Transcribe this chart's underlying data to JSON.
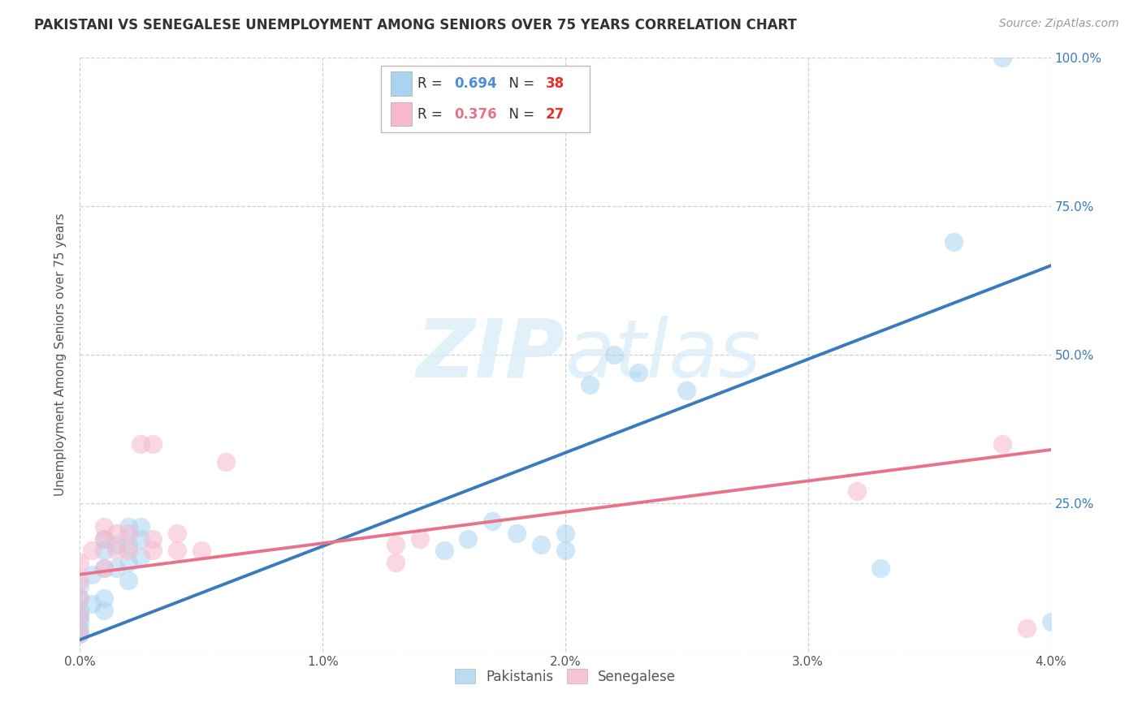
{
  "title": "PAKISTANI VS SENEGALESE UNEMPLOYMENT AMONG SENIORS OVER 75 YEARS CORRELATION CHART",
  "source": "Source: ZipAtlas.com",
  "ylabel": "Unemployment Among Seniors over 75 years",
  "xlim": [
    0,
    0.04
  ],
  "ylim": [
    0,
    1.0
  ],
  "xticks": [
    0.0,
    0.01,
    0.02,
    0.03,
    0.04
  ],
  "yticks": [
    0.0,
    0.25,
    0.5,
    0.75,
    1.0
  ],
  "xticklabels": [
    "0.0%",
    "1.0%",
    "2.0%",
    "3.0%",
    "4.0%"
  ],
  "yticklabels_right": [
    "",
    "25.0%",
    "50.0%",
    "75.0%",
    "100.0%"
  ],
  "pakistani_r": "0.694",
  "pakistani_n": "38",
  "senegalese_r": "0.376",
  "senegalese_n": "27",
  "blue_scatter_color": "#a8d4f0",
  "pink_scatter_color": "#f5b8cc",
  "blue_line_color": "#3a7abf",
  "pink_line_color": "#e8728a",
  "blue_legend_color": "#a8d4f0",
  "pink_legend_color": "#f5b8cc",
  "r_value_blue": "#4a90d9",
  "r_value_pink": "#e8728a",
  "n_value_color": "#e8302a",
  "watermark_color": "#dceef8",
  "background_color": "#ffffff",
  "grid_color": "#d0d0d0",
  "tick_color": "#555555",
  "right_tick_color": "#3a7abf",
  "pakistani_x": [
    0.0,
    0.0,
    0.0,
    0.0,
    0.0,
    0.0,
    0.0,
    0.0005,
    0.0005,
    0.001,
    0.001,
    0.001,
    0.001,
    0.001,
    0.0015,
    0.0015,
    0.002,
    0.002,
    0.002,
    0.002,
    0.0025,
    0.0025,
    0.0025,
    0.015,
    0.016,
    0.017,
    0.018,
    0.019,
    0.02,
    0.02,
    0.021,
    0.022,
    0.023,
    0.025,
    0.033,
    0.036,
    0.038,
    0.04
  ],
  "pakistani_y": [
    0.03,
    0.05,
    0.07,
    0.09,
    0.11,
    0.06,
    0.04,
    0.08,
    0.13,
    0.07,
    0.09,
    0.14,
    0.17,
    0.19,
    0.14,
    0.18,
    0.12,
    0.15,
    0.18,
    0.21,
    0.16,
    0.19,
    0.21,
    0.17,
    0.19,
    0.22,
    0.2,
    0.18,
    0.17,
    0.2,
    0.45,
    0.5,
    0.47,
    0.44,
    0.14,
    0.69,
    1.0,
    0.05
  ],
  "senegalese_x": [
    0.0,
    0.0,
    0.0,
    0.0,
    0.0,
    0.0005,
    0.001,
    0.001,
    0.001,
    0.0015,
    0.0015,
    0.002,
    0.002,
    0.0025,
    0.003,
    0.003,
    0.003,
    0.004,
    0.004,
    0.005,
    0.006,
    0.013,
    0.013,
    0.014,
    0.032,
    0.038,
    0.039
  ],
  "senegalese_y": [
    0.03,
    0.06,
    0.09,
    0.12,
    0.15,
    0.17,
    0.14,
    0.19,
    0.21,
    0.17,
    0.2,
    0.17,
    0.2,
    0.35,
    0.35,
    0.17,
    0.19,
    0.17,
    0.2,
    0.17,
    0.32,
    0.15,
    0.18,
    0.19,
    0.27,
    0.35,
    0.04
  ],
  "pak_trend_x": [
    0.0,
    0.04
  ],
  "pak_trend_y": [
    0.02,
    0.65
  ],
  "sen_trend_x": [
    0.0,
    0.04
  ],
  "sen_trend_y": [
    0.13,
    0.34
  ]
}
